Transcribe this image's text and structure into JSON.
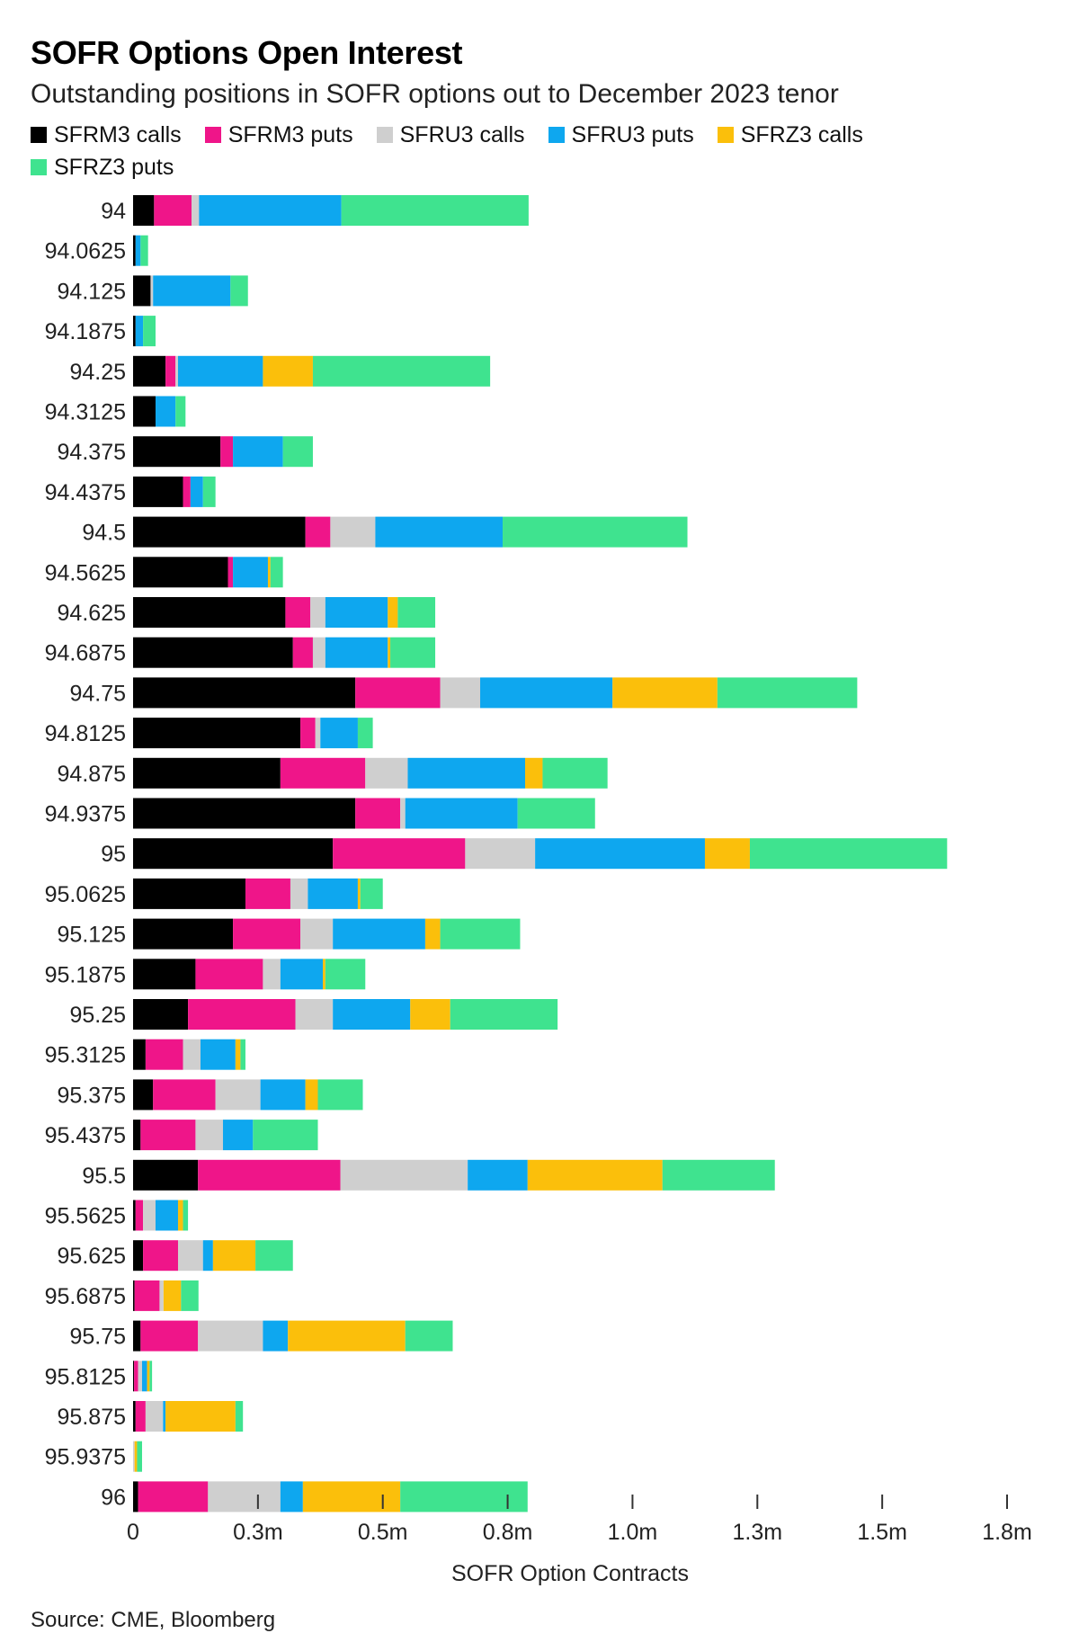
{
  "title": "SOFR Options Open Interest",
  "subtitle": "Outstanding positions in SOFR options out to December 2023 tenor",
  "source": "Source: CME, Bloomberg",
  "colors": {
    "SFRM3 calls": "#000000",
    "SFRM3 puts": "#ef1589",
    "SFRU3 calls": "#cfcfcf",
    "SFRU3 puts": "#0ea7ef",
    "SFRZ3 calls": "#fbbf0b",
    "SFRZ3 puts": "#3fe38f"
  },
  "chart_data": {
    "type": "bar",
    "orientation": "horizontal",
    "stacked": true,
    "xlabel": "SOFR Option Contracts",
    "ylabel": "",
    "xlim": [
      0,
      1750000
    ],
    "xticks": [
      0,
      250000,
      500000,
      750000,
      1000000,
      1250000,
      1500000,
      1750000
    ],
    "xtick_labels": [
      "0",
      "0.3m",
      "0.5m",
      "0.8m",
      "1.0m",
      "1.3m",
      "1.5m",
      "1.8m"
    ],
    "grid": false,
    "legend_position": "top",
    "categories": [
      "94",
      "94.0625",
      "94.125",
      "94.1875",
      "94.25",
      "94.3125",
      "94.375",
      "94.4375",
      "94.5",
      "94.5625",
      "94.625",
      "94.6875",
      "94.75",
      "94.8125",
      "94.875",
      "94.9375",
      "95",
      "95.0625",
      "95.125",
      "95.1875",
      "95.25",
      "95.3125",
      "95.375",
      "95.4375",
      "95.5",
      "95.5625",
      "95.625",
      "95.6875",
      "95.75",
      "95.8125",
      "95.875",
      "95.9375",
      "96"
    ],
    "series": [
      {
        "name": "SFRM3 calls",
        "values": [
          42000,
          5000,
          35000,
          5000,
          65000,
          45000,
          175000,
          100000,
          345000,
          190000,
          305000,
          320000,
          445000,
          335000,
          295000,
          445000,
          400000,
          225000,
          200000,
          125000,
          110000,
          25000,
          40000,
          15000,
          130000,
          5000,
          20000,
          3000,
          15000,
          2000,
          5000,
          0,
          10000
        ]
      },
      {
        "name": "SFRM3 puts",
        "values": [
          75000,
          0,
          0,
          0,
          20000,
          0,
          25000,
          15000,
          50000,
          10000,
          50000,
          40000,
          170000,
          30000,
          170000,
          90000,
          265000,
          90000,
          135000,
          135000,
          215000,
          75000,
          125000,
          110000,
          285000,
          15000,
          70000,
          50000,
          115000,
          8000,
          20000,
          0,
          140000
        ]
      },
      {
        "name": "SFRU3 calls",
        "values": [
          15000,
          0,
          5000,
          0,
          5000,
          0,
          0,
          0,
          90000,
          0,
          30000,
          25000,
          80000,
          10000,
          85000,
          10000,
          140000,
          35000,
          65000,
          35000,
          75000,
          35000,
          90000,
          55000,
          255000,
          25000,
          50000,
          8000,
          130000,
          8000,
          35000,
          3000,
          145000
        ]
      },
      {
        "name": "SFRU3 puts",
        "values": [
          285000,
          10000,
          155000,
          15000,
          170000,
          40000,
          100000,
          25000,
          255000,
          70000,
          125000,
          125000,
          265000,
          75000,
          235000,
          225000,
          340000,
          100000,
          185000,
          85000,
          155000,
          70000,
          90000,
          60000,
          120000,
          45000,
          20000,
          0,
          50000,
          10000,
          5000,
          0,
          45000
        ]
      },
      {
        "name": "SFRZ3 calls",
        "values": [
          0,
          0,
          0,
          0,
          100000,
          0,
          0,
          0,
          0,
          5000,
          20000,
          5000,
          210000,
          0,
          35000,
          0,
          90000,
          5000,
          30000,
          5000,
          80000,
          10000,
          25000,
          0,
          270000,
          10000,
          85000,
          35000,
          235000,
          5000,
          140000,
          5000,
          195000
        ]
      },
      {
        "name": "SFRZ3 puts",
        "values": [
          375000,
          15000,
          35000,
          25000,
          355000,
          20000,
          60000,
          25000,
          370000,
          25000,
          75000,
          90000,
          280000,
          30000,
          130000,
          155000,
          395000,
          45000,
          160000,
          80000,
          215000,
          10000,
          90000,
          130000,
          225000,
          10000,
          75000,
          35000,
          95000,
          5000,
          15000,
          10000,
          255000
        ]
      }
    ]
  }
}
